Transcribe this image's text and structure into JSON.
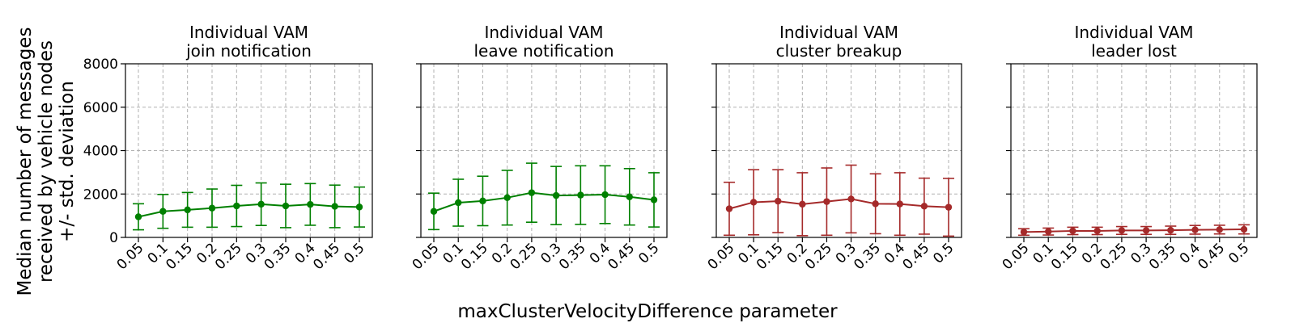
{
  "figure": {
    "ylabel_lines": [
      "Median number of messages",
      "received by vehicle nodes",
      "+/- std. deviation"
    ],
    "xlabel": "maxClusterVelocityDifference parameter"
  },
  "colors": {
    "green": "#008000",
    "red": "#a52a2a",
    "grid": "#b0b0b0"
  },
  "chart_data": [
    {
      "type": "line",
      "title": [
        "Individual VAM",
        "join notification"
      ],
      "color": "#008000",
      "categories": [
        "0.05",
        "0.1",
        "0.15",
        "0.2",
        "0.25",
        "0.3",
        "0.35",
        "0.4",
        "0.45",
        "0.5"
      ],
      "values": [
        950,
        1200,
        1270,
        1350,
        1450,
        1530,
        1450,
        1520,
        1430,
        1400
      ],
      "std": [
        600,
        780,
        800,
        880,
        950,
        980,
        1000,
        960,
        980,
        920
      ],
      "ylim": [
        0,
        8000
      ],
      "yticks": [
        "0",
        "2000",
        "4000",
        "6000",
        "8000"
      ],
      "grid": true
    },
    {
      "type": "line",
      "title": [
        "Individual VAM",
        "leave notification"
      ],
      "color": "#008000",
      "categories": [
        "0.05",
        "0.1",
        "0.15",
        "0.2",
        "0.25",
        "0.3",
        "0.35",
        "0.4",
        "0.45",
        "0.5"
      ],
      "values": [
        1200,
        1600,
        1680,
        1830,
        2060,
        1930,
        1950,
        1970,
        1870,
        1730
      ],
      "std": [
        840,
        1080,
        1140,
        1260,
        1360,
        1340,
        1350,
        1330,
        1300,
        1250
      ],
      "ylim": [
        0,
        8000
      ],
      "yticks": [
        "0",
        "2000",
        "4000",
        "6000",
        "8000"
      ],
      "grid": true
    },
    {
      "type": "line",
      "title": [
        "Individual VAM",
        "cluster breakup"
      ],
      "color": "#a52a2a",
      "categories": [
        "0.05",
        "0.1",
        "0.15",
        "0.2",
        "0.25",
        "0.3",
        "0.35",
        "0.4",
        "0.45",
        "0.5"
      ],
      "values": [
        1320,
        1620,
        1670,
        1530,
        1650,
        1770,
        1550,
        1540,
        1440,
        1390
      ],
      "std": [
        1220,
        1500,
        1450,
        1450,
        1550,
        1560,
        1380,
        1440,
        1290,
        1330
      ],
      "ylim": [
        0,
        8000
      ],
      "yticks": [
        "0",
        "2000",
        "4000",
        "6000",
        "8000"
      ],
      "grid": true
    },
    {
      "type": "line",
      "title": [
        "Individual VAM",
        "leader lost"
      ],
      "color": "#a52a2a",
      "categories": [
        "0.05",
        "0.1",
        "0.15",
        "0.2",
        "0.25",
        "0.3",
        "0.35",
        "0.4",
        "0.45",
        "0.5"
      ],
      "values": [
        250,
        270,
        300,
        300,
        320,
        320,
        330,
        350,
        360,
        370
      ],
      "std": [
        150,
        160,
        170,
        170,
        180,
        180,
        190,
        200,
        200,
        210
      ],
      "ylim": [
        0,
        8000
      ],
      "yticks": [
        "0",
        "2000",
        "4000",
        "6000",
        "8000"
      ],
      "grid": true
    }
  ]
}
